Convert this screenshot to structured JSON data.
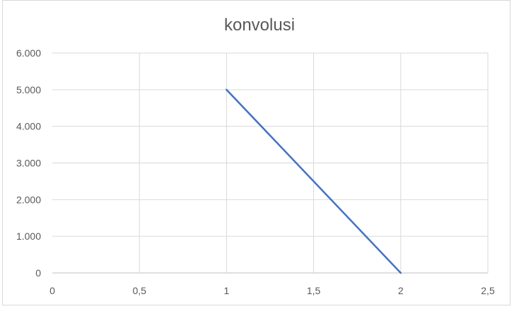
{
  "chart_data": {
    "type": "line",
    "title": "konvolusi",
    "xlabel": "",
    "ylabel": "",
    "xlim": [
      0,
      2.5
    ],
    "ylim": [
      0,
      6000
    ],
    "x_ticks": [
      0,
      0.5,
      1,
      1.5,
      2,
      2.5
    ],
    "x_tick_labels": [
      "0",
      "0,5",
      "1",
      "1,5",
      "2",
      "2,5"
    ],
    "y_ticks": [
      0,
      1000,
      2000,
      3000,
      4000,
      5000,
      6000
    ],
    "y_tick_labels": [
      "0",
      "1.000",
      "2.000",
      "3.000",
      "4.000",
      "5.000",
      "6.000"
    ],
    "grid": true,
    "legend": "none",
    "series": [
      {
        "color": "#4472c4",
        "x": [
          1,
          2
        ],
        "y": [
          5000,
          0
        ]
      }
    ],
    "colors": {
      "grid": "#d9d9d9",
      "text": "#595959",
      "line": "#4472c4"
    }
  }
}
